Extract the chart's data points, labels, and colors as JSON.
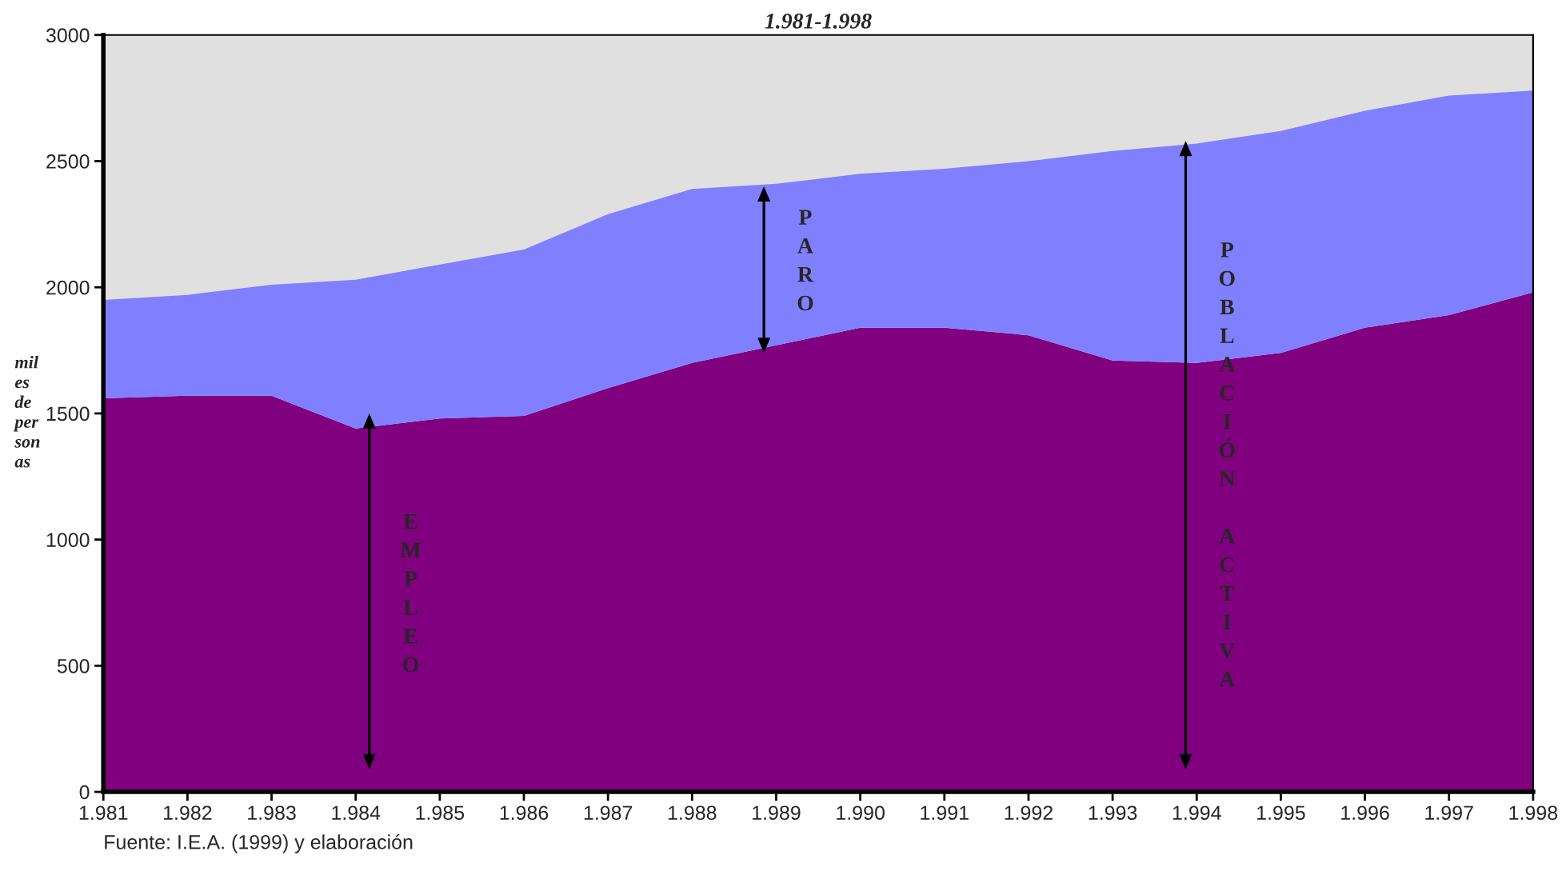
{
  "chart_data": {
    "type": "area",
    "title": "1.981-1.998",
    "ylabel": "mil\nes\nde\nper\nson\nas",
    "x": [
      1981,
      1982,
      1983,
      1984,
      1985,
      1986,
      1987,
      1988,
      1989,
      1990,
      1991,
      1992,
      1993,
      1994,
      1995,
      1996,
      1997,
      1998
    ],
    "stacked": true,
    "series": [
      {
        "color": "#800080",
        "values": [
          1560,
          1570,
          1570,
          1440,
          1480,
          1490,
          1600,
          1700,
          1770,
          1840,
          1840,
          1810,
          1710,
          1700,
          1740,
          1840,
          1890,
          1980
        ]
      },
      {
        "color": "#8080ff",
        "values": [
          390,
          400,
          440,
          590,
          610,
          660,
          690,
          690,
          640,
          610,
          630,
          690,
          830,
          870,
          880,
          860,
          870,
          800
        ]
      }
    ],
    "xlim": [
      1981,
      1998
    ],
    "xticks": [
      {
        "value": 1981,
        "label": "1.981"
      },
      {
        "value": 1982,
        "label": "1.982"
      },
      {
        "value": 1983,
        "label": "1.983"
      },
      {
        "value": 1984,
        "label": "1.984"
      },
      {
        "value": 1985,
        "label": "1.985"
      },
      {
        "value": 1986,
        "label": "1.986"
      },
      {
        "value": 1987,
        "label": "1.987"
      },
      {
        "value": 1988,
        "label": "1.988"
      },
      {
        "value": 1989,
        "label": "1.989"
      },
      {
        "value": 1990,
        "label": "1.990"
      },
      {
        "value": 1991,
        "label": "1.991"
      },
      {
        "value": 1992,
        "label": "1.992"
      },
      {
        "value": 1993,
        "label": "1.993"
      },
      {
        "value": 1994,
        "label": "1.994"
      },
      {
        "value": 1995,
        "label": "1.995"
      },
      {
        "value": 1996,
        "label": "1.996"
      },
      {
        "value": 1997,
        "label": "1.997"
      },
      {
        "value": 1998,
        "label": "1.998"
      }
    ],
    "ylim": [
      0,
      3000
    ],
    "yticks": [
      0,
      500,
      1000,
      1500,
      2000,
      2500,
      3000
    ],
    "grid": false,
    "legend": false,
    "annotations": [
      "EMPLEO",
      "PARO",
      "POBLACIÓN ACTIVA",
      "Fuente: I.E.A. (1999) y elaboración"
    ]
  }
}
